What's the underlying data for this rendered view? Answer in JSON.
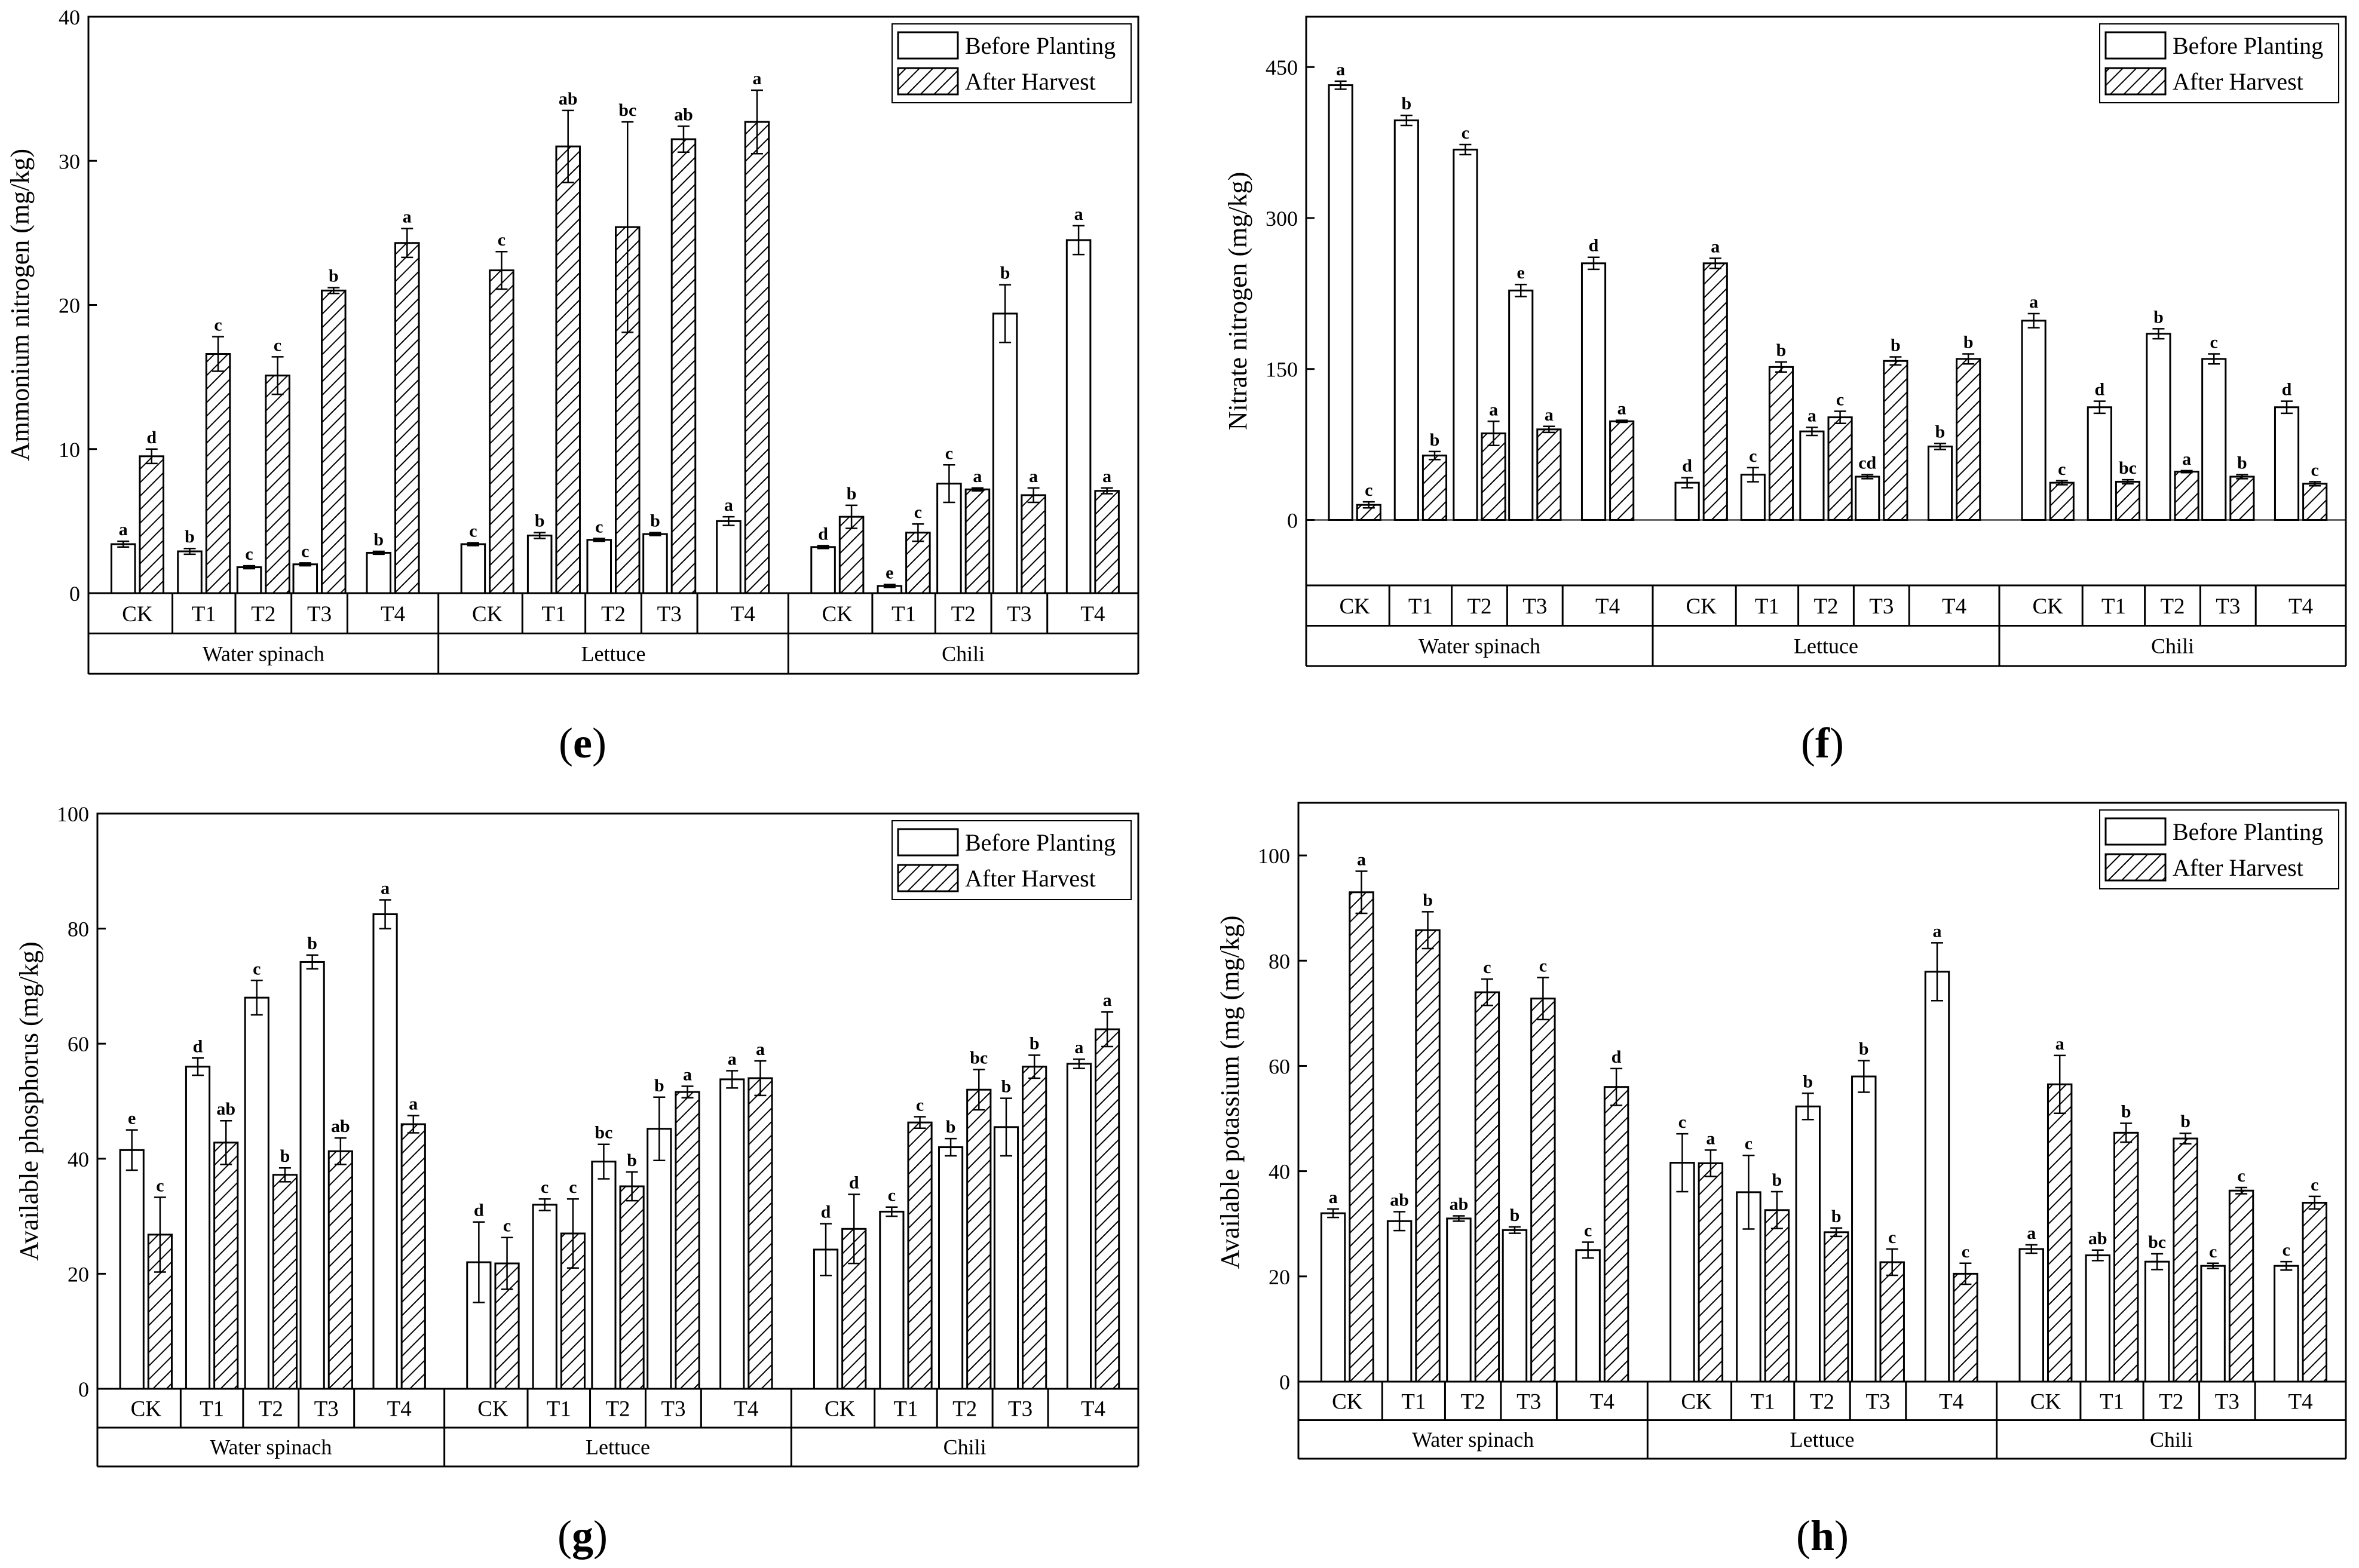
{
  "chart_data": [
    {
      "type": "bar",
      "panel": "(e)",
      "ylabel": "Ammonium nitrogen (mg/kg)",
      "ylim": [
        0,
        40
      ],
      "yticks": [
        0,
        10,
        20,
        30,
        40
      ],
      "legend": [
        "Before Planting",
        "After Harvest"
      ],
      "crops": [
        "Water spinach",
        "Lettuce",
        "Chili"
      ],
      "treatments": [
        "CK",
        "T1",
        "T2",
        "T3",
        "T4"
      ],
      "series": [
        {
          "name": "Before Planting",
          "values": [
            [
              3.4,
              2.9,
              1.8,
              2.0,
              2.8
            ],
            [
              3.4,
              4.0,
              3.7,
              4.1,
              5.0
            ],
            [
              3.2,
              0.5,
              7.6,
              19.4,
              24.5
            ]
          ],
          "errors": [
            [
              0.2,
              0.2,
              0.1,
              0.1,
              0.1
            ],
            [
              0.1,
              0.2,
              0.1,
              0.1,
              0.3
            ],
            [
              0.1,
              0.1,
              1.3,
              2.0,
              1.0
            ]
          ],
          "letters": [
            [
              "a",
              "b",
              "c",
              "c",
              "b"
            ],
            [
              "c",
              "b",
              "c",
              "b",
              "a"
            ],
            [
              "d",
              "e",
              "c",
              "b",
              "a"
            ]
          ]
        },
        {
          "name": "After Harvest",
          "values": [
            [
              9.5,
              16.6,
              15.1,
              21.0,
              24.3
            ],
            [
              22.4,
              31.0,
              25.4,
              31.5,
              32.7
            ],
            [
              5.3,
              4.2,
              7.2,
              6.8,
              7.1
            ]
          ],
          "errors": [
            [
              0.5,
              1.2,
              1.3,
              0.2,
              1.0
            ],
            [
              1.3,
              2.5,
              7.3,
              0.9,
              2.2
            ],
            [
              0.8,
              0.6,
              0.1,
              0.5,
              0.2
            ]
          ],
          "letters": [
            [
              "d",
              "c",
              "c",
              "b",
              "a"
            ],
            [
              "c",
              "ab",
              "bc",
              "ab",
              "a"
            ],
            [
              "b",
              "c",
              "a",
              "a",
              "a"
            ]
          ]
        }
      ]
    },
    {
      "type": "bar",
      "panel": "(f)",
      "ylabel": "Nitrate nitrogen (mg/kg)",
      "ylim": [
        -65,
        500
      ],
      "yticks": [
        0,
        150,
        300,
        450
      ],
      "legend": [
        "Before Planting",
        "After Harvest"
      ],
      "crops": [
        "Water spinach",
        "Lettuce",
        "Chili"
      ],
      "treatments": [
        "CK",
        "T1",
        "T2",
        "T3",
        "T4"
      ],
      "series": [
        {
          "name": "Before Planting",
          "values": [
            [
              432,
              397,
              368,
              228,
              255
            ],
            [
              37,
              45,
              88,
              43,
              73
            ],
            [
              198,
              112,
              185,
              160,
              112
            ]
          ],
          "errors": [
            [
              4,
              5,
              5,
              6,
              6
            ],
            [
              5,
              7,
              4,
              2,
              3
            ],
            [
              7,
              6,
              5,
              5,
              6
            ]
          ],
          "letters": [
            [
              "a",
              "b",
              "c",
              "e",
              "d"
            ],
            [
              "d",
              "c",
              "a",
              "cd",
              "b"
            ],
            [
              "a",
              "d",
              "b",
              "c",
              "d"
            ]
          ]
        },
        {
          "name": "After Harvest",
          "values": [
            [
              15,
              64,
              86,
              90,
              98
            ],
            [
              255,
              152,
              102,
              158,
              160
            ],
            [
              37,
              38,
              48,
              43,
              36
            ]
          ],
          "errors": [
            [
              3,
              4,
              12,
              3,
              1
            ],
            [
              5,
              5,
              6,
              4,
              5
            ],
            [
              2,
              2,
              1,
              2,
              2
            ]
          ],
          "letters": [
            [
              "c",
              "b",
              "a",
              "a",
              "a"
            ],
            [
              "a",
              "b",
              "c",
              "b",
              "b"
            ],
            [
              "c",
              "bc",
              "a",
              "b",
              "c"
            ]
          ]
        }
      ]
    },
    {
      "type": "bar",
      "panel": "(g)",
      "ylabel": "Available phosphorus (mg/kg)",
      "ylim": [
        0,
        100
      ],
      "yticks": [
        0,
        20,
        40,
        60,
        80,
        100
      ],
      "legend": [
        "Before Planting",
        "After Harvest"
      ],
      "crops": [
        "Water spinach",
        "Lettuce",
        "Chili"
      ],
      "treatments": [
        "CK",
        "T1",
        "T2",
        "T3",
        "T4"
      ],
      "series": [
        {
          "name": "Before Planting",
          "values": [
            [
              41.5,
              56.0,
              68.0,
              74.2,
              82.5
            ],
            [
              22.0,
              32.0,
              39.5,
              45.2,
              53.8
            ],
            [
              24.2,
              30.8,
              42.0,
              45.5,
              56.5
            ]
          ],
          "errors": [
            [
              3.5,
              1.5,
              3.0,
              1.2,
              2.5
            ],
            [
              7.0,
              1.0,
              3.0,
              5.5,
              1.5
            ],
            [
              4.5,
              0.8,
              1.5,
              5.0,
              0.8
            ]
          ],
          "letters": [
            [
              "e",
              "d",
              "c",
              "b",
              "a"
            ],
            [
              "d",
              "c",
              "bc",
              "b",
              "a"
            ],
            [
              "d",
              "c",
              "b",
              "b",
              "a"
            ]
          ]
        },
        {
          "name": "After Harvest",
          "values": [
            [
              26.8,
              42.8,
              37.2,
              41.3,
              46.0
            ],
            [
              21.8,
              27.0,
              35.2,
              51.6,
              54.0
            ],
            [
              27.8,
              46.3,
              52.0,
              56.0,
              62.5
            ]
          ],
          "errors": [
            [
              6.5,
              3.8,
              1.2,
              2.3,
              1.5
            ],
            [
              4.5,
              6.0,
              2.5,
              1.0,
              3.0
            ],
            [
              6.0,
              1.0,
              3.5,
              2.0,
              3.0
            ]
          ],
          "letters": [
            [
              "c",
              "ab",
              "b",
              "ab",
              "a"
            ],
            [
              "c",
              "c",
              "b",
              "a",
              "a"
            ],
            [
              "d",
              "c",
              "bc",
              "b",
              "a"
            ]
          ]
        }
      ]
    },
    {
      "type": "bar",
      "panel": "(h)",
      "ylabel": "Available potassium (mg (mg/kg)",
      "ylim": [
        0,
        110
      ],
      "yticks": [
        0,
        20,
        40,
        60,
        80,
        100
      ],
      "legend": [
        "Before Planting",
        "After Harvest"
      ],
      "crops": [
        "Water spinach",
        "Lettuce",
        "Chili"
      ],
      "treatments": [
        "CK",
        "T1",
        "T2",
        "T3",
        "T4"
      ],
      "series": [
        {
          "name": "Before Planting",
          "values": [
            [
              32.0,
              30.5,
              31.0,
              28.8,
              25.0
            ],
            [
              41.6,
              36.0,
              52.3,
              58.0,
              77.9
            ],
            [
              25.2,
              24.0,
              22.8,
              22.0,
              22.0
            ]
          ],
          "errors": [
            [
              0.8,
              1.8,
              0.5,
              0.6,
              1.5
            ],
            [
              5.5,
              7.0,
              2.5,
              3.0,
              5.5
            ],
            [
              0.8,
              1.0,
              1.5,
              0.5,
              0.8
            ]
          ],
          "letters": [
            [
              "a",
              "ab",
              "ab",
              "b",
              "c"
            ],
            [
              "c",
              "c",
              "b",
              "b",
              "a"
            ],
            [
              "a",
              "ab",
              "bc",
              "c",
              "c"
            ]
          ]
        },
        {
          "name": "After Harvest",
          "values": [
            [
              93.0,
              85.8,
              74.0,
              72.8,
              56.0
            ],
            [
              41.5,
              32.6,
              28.4,
              22.7,
              20.5
            ],
            [
              56.5,
              47.3,
              46.2,
              36.3,
              34.0
            ]
          ],
          "errors": [
            [
              4.0,
              3.5,
              2.5,
              4.0,
              3.5
            ],
            [
              2.5,
              3.5,
              0.8,
              2.5,
              2.0
            ],
            [
              5.5,
              1.8,
              1.0,
              0.6,
              1.2
            ]
          ],
          "letters": [
            [
              "a",
              "b",
              "c",
              "c",
              "d"
            ],
            [
              "a",
              "b",
              "b",
              "c",
              "c"
            ],
            [
              "a",
              "b",
              "b",
              "c",
              "c"
            ]
          ]
        }
      ]
    }
  ]
}
